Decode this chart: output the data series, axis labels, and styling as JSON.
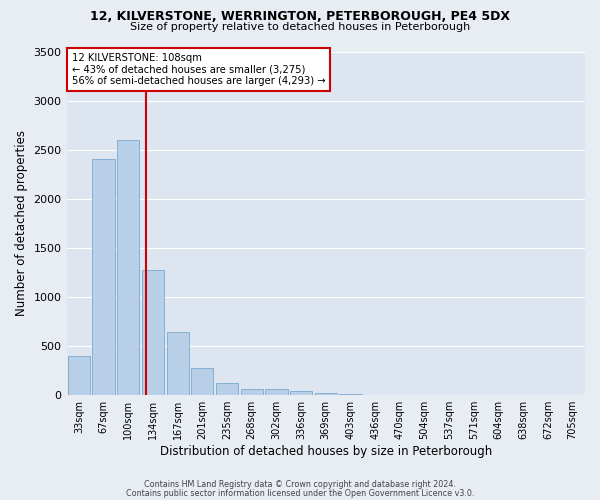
{
  "title1": "12, KILVERSTONE, WERRINGTON, PETERBOROUGH, PE4 5DX",
  "title2": "Size of property relative to detached houses in Peterborough",
  "xlabel": "Distribution of detached houses by size in Peterborough",
  "ylabel": "Number of detached properties",
  "footnote1": "Contains HM Land Registry data © Crown copyright and database right 2024.",
  "footnote2": "Contains public sector information licensed under the Open Government Licence v3.0.",
  "bar_labels": [
    "33sqm",
    "67sqm",
    "100sqm",
    "134sqm",
    "167sqm",
    "201sqm",
    "235sqm",
    "268sqm",
    "302sqm",
    "336sqm",
    "369sqm",
    "403sqm",
    "436sqm",
    "470sqm",
    "504sqm",
    "537sqm",
    "571sqm",
    "604sqm",
    "638sqm",
    "672sqm",
    "705sqm"
  ],
  "bar_values": [
    390,
    2400,
    2600,
    1270,
    640,
    270,
    120,
    60,
    55,
    35,
    20,
    5,
    0,
    0,
    0,
    0,
    0,
    0,
    0,
    0,
    0
  ],
  "bar_color": "#b8cfe8",
  "bar_edge_color": "#7aaad0",
  "property_line_x": 2.73,
  "annotation_title": "12 KILVERSTONE: 108sqm",
  "annotation_line1": "← 43% of detached houses are smaller (3,275)",
  "annotation_line2": "56% of semi-detached houses are larger (4,293) →",
  "annotation_box_color": "#ffffff",
  "annotation_box_edge_color": "#cc0000",
  "red_line_color": "#cc0000",
  "ylim": [
    0,
    3500
  ],
  "yticks": [
    0,
    500,
    1000,
    1500,
    2000,
    2500,
    3000,
    3500
  ],
  "background_color": "#e8edf4",
  "plot_bg_color": "#dde5f0",
  "grid_color": "#ffffff"
}
